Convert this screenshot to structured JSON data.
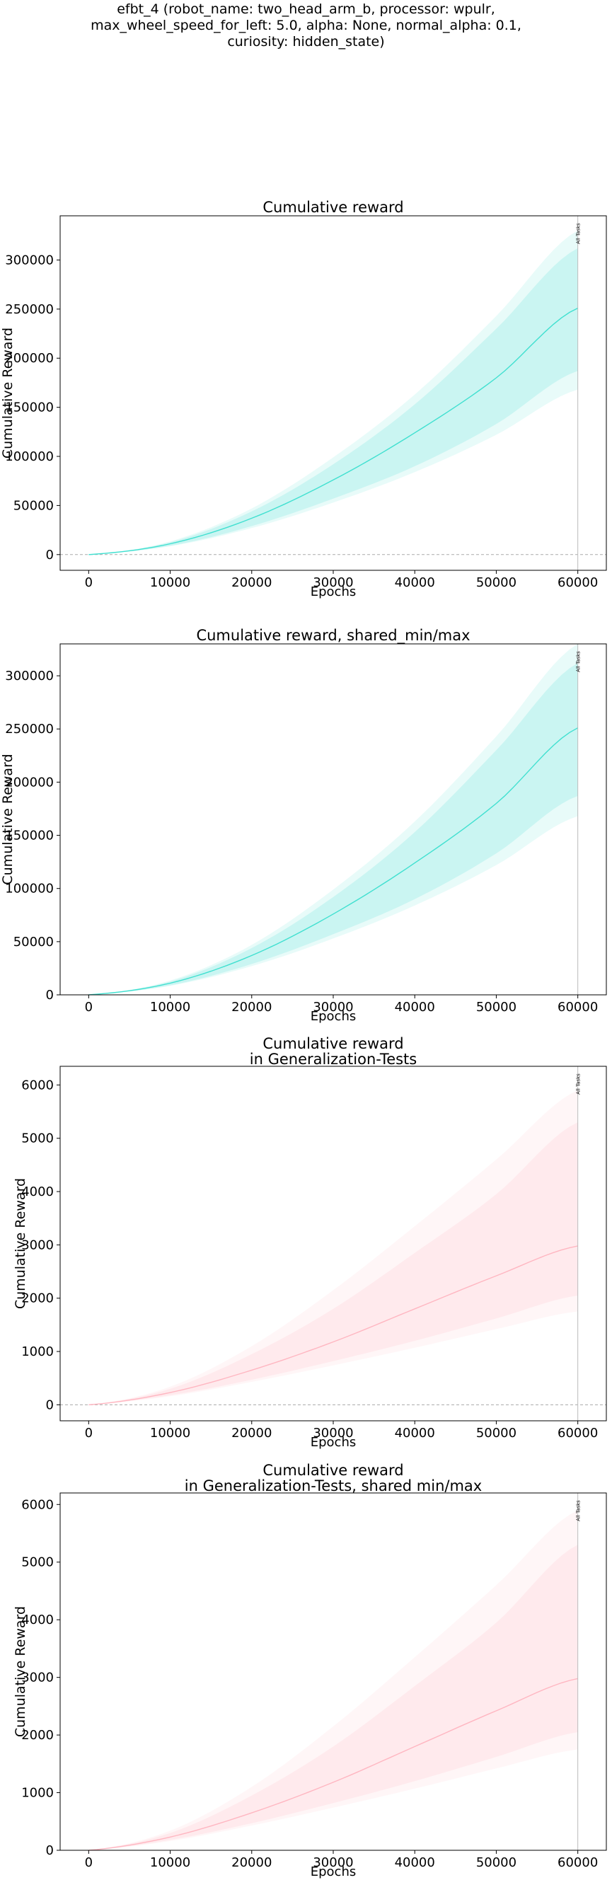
{
  "figure": {
    "suptitle": [
      "efbt_4 (robot_name: two_head_arm_b, processor: wpulr,",
      "max_wheel_speed_for_left: 5.0, alpha: None, normal_alpha: 0.1,",
      "curiosity: hidden_state)"
    ]
  },
  "chart_data": [
    {
      "type": "line",
      "title": "Cumulative reward",
      "xlabel": "Epochs",
      "ylabel": "Cumulative Reward",
      "xlim": [
        -3500,
        63500
      ],
      "ylim": [
        -16000,
        345000
      ],
      "xticks": [
        0,
        10000,
        20000,
        30000,
        40000,
        50000,
        60000
      ],
      "yticks": [
        0,
        50000,
        100000,
        150000,
        200000,
        250000,
        300000
      ],
      "zero_line": true,
      "vline": {
        "x": 60000,
        "label": "All Tasks"
      },
      "color": "#40e0d0",
      "x": [
        0,
        10000,
        20000,
        30000,
        40000,
        50000,
        60000
      ],
      "mean": [
        0,
        11000,
        37000,
        76000,
        124000,
        180000,
        251000
      ],
      "band_inner": {
        "low": [
          0,
          9000,
          29000,
          57000,
          90000,
          133000,
          187000
        ],
        "high": [
          0,
          12500,
          44000,
          92000,
          153000,
          230000,
          312000
        ]
      },
      "band_outer": {
        "low": [
          0,
          8500,
          27000,
          53000,
          84000,
          122000,
          168000
        ],
        "high": [
          0,
          13500,
          47000,
          99000,
          163000,
          243000,
          330000
        ]
      }
    },
    {
      "type": "line",
      "title": "Cumulative reward, shared_min/max",
      "xlabel": "Epochs",
      "ylabel": "Cumulative Reward",
      "xlim": [
        -3500,
        63500
      ],
      "ylim": [
        0,
        330000
      ],
      "xticks": [
        0,
        10000,
        20000,
        30000,
        40000,
        50000,
        60000
      ],
      "yticks": [
        0,
        50000,
        100000,
        150000,
        200000,
        250000,
        300000
      ],
      "zero_line": false,
      "vline": {
        "x": 60000,
        "label": "All Tasks"
      },
      "color": "#40e0d0",
      "x": [
        0,
        10000,
        20000,
        30000,
        40000,
        50000,
        60000
      ],
      "mean": [
        0,
        11000,
        37000,
        76000,
        124000,
        180000,
        251000
      ],
      "band_inner": {
        "low": [
          0,
          9000,
          29000,
          57000,
          90000,
          133000,
          187000
        ],
        "high": [
          0,
          12500,
          44000,
          92000,
          153000,
          230000,
          312000
        ]
      },
      "band_outer": {
        "low": [
          0,
          8500,
          27000,
          53000,
          84000,
          122000,
          168000
        ],
        "high": [
          0,
          13500,
          47000,
          99000,
          163000,
          243000,
          330000
        ]
      }
    },
    {
      "type": "line",
      "title": "Cumulative reward\nin Generalization-Tests",
      "xlabel": "Epochs",
      "ylabel": "Cumulative Reward",
      "xlim": [
        -3500,
        63500
      ],
      "ylim": [
        -300,
        6350
      ],
      "xticks": [
        0,
        10000,
        20000,
        30000,
        40000,
        50000,
        60000
      ],
      "yticks": [
        0,
        1000,
        2000,
        3000,
        4000,
        5000,
        6000
      ],
      "zero_line": true,
      "vline": {
        "x": 60000,
        "label": "All Tasks"
      },
      "color": "#ffb6c1",
      "x": [
        0,
        10000,
        20000,
        30000,
        40000,
        50000,
        60000
      ],
      "mean": [
        0,
        230,
        650,
        1180,
        1800,
        2420,
        2980
      ],
      "band_inner": {
        "low": [
          0,
          180,
          470,
          820,
          1200,
          1620,
          2050
        ],
        "high": [
          0,
          300,
          950,
          1800,
          2850,
          3950,
          5300
        ]
      },
      "band_outer": {
        "low": [
          0,
          160,
          430,
          740,
          1070,
          1420,
          1750
        ],
        "high": [
          0,
          340,
          1100,
          2150,
          3350,
          4600,
          5900
        ]
      }
    },
    {
      "type": "line",
      "title": "Cumulative reward\nin Generalization-Tests, shared min/max",
      "xlabel": "Epochs",
      "ylabel": "Cumulative Reward",
      "xlim": [
        -3500,
        63500
      ],
      "ylim": [
        0,
        6200
      ],
      "xticks": [
        0,
        10000,
        20000,
        30000,
        40000,
        50000,
        60000
      ],
      "yticks": [
        0,
        1000,
        2000,
        3000,
        4000,
        5000,
        6000
      ],
      "zero_line": false,
      "vline": {
        "x": 60000,
        "label": "All Tasks"
      },
      "color": "#ffb6c1",
      "x": [
        0,
        10000,
        20000,
        30000,
        40000,
        50000,
        60000
      ],
      "mean": [
        0,
        230,
        650,
        1180,
        1800,
        2420,
        2980
      ],
      "band_inner": {
        "low": [
          0,
          180,
          470,
          820,
          1200,
          1620,
          2050
        ],
        "high": [
          0,
          300,
          950,
          1800,
          2850,
          3950,
          5300
        ]
      },
      "band_outer": {
        "low": [
          0,
          160,
          430,
          740,
          1070,
          1420,
          1750
        ],
        "high": [
          0,
          340,
          1100,
          2150,
          3350,
          4600,
          5900
        ]
      }
    }
  ]
}
